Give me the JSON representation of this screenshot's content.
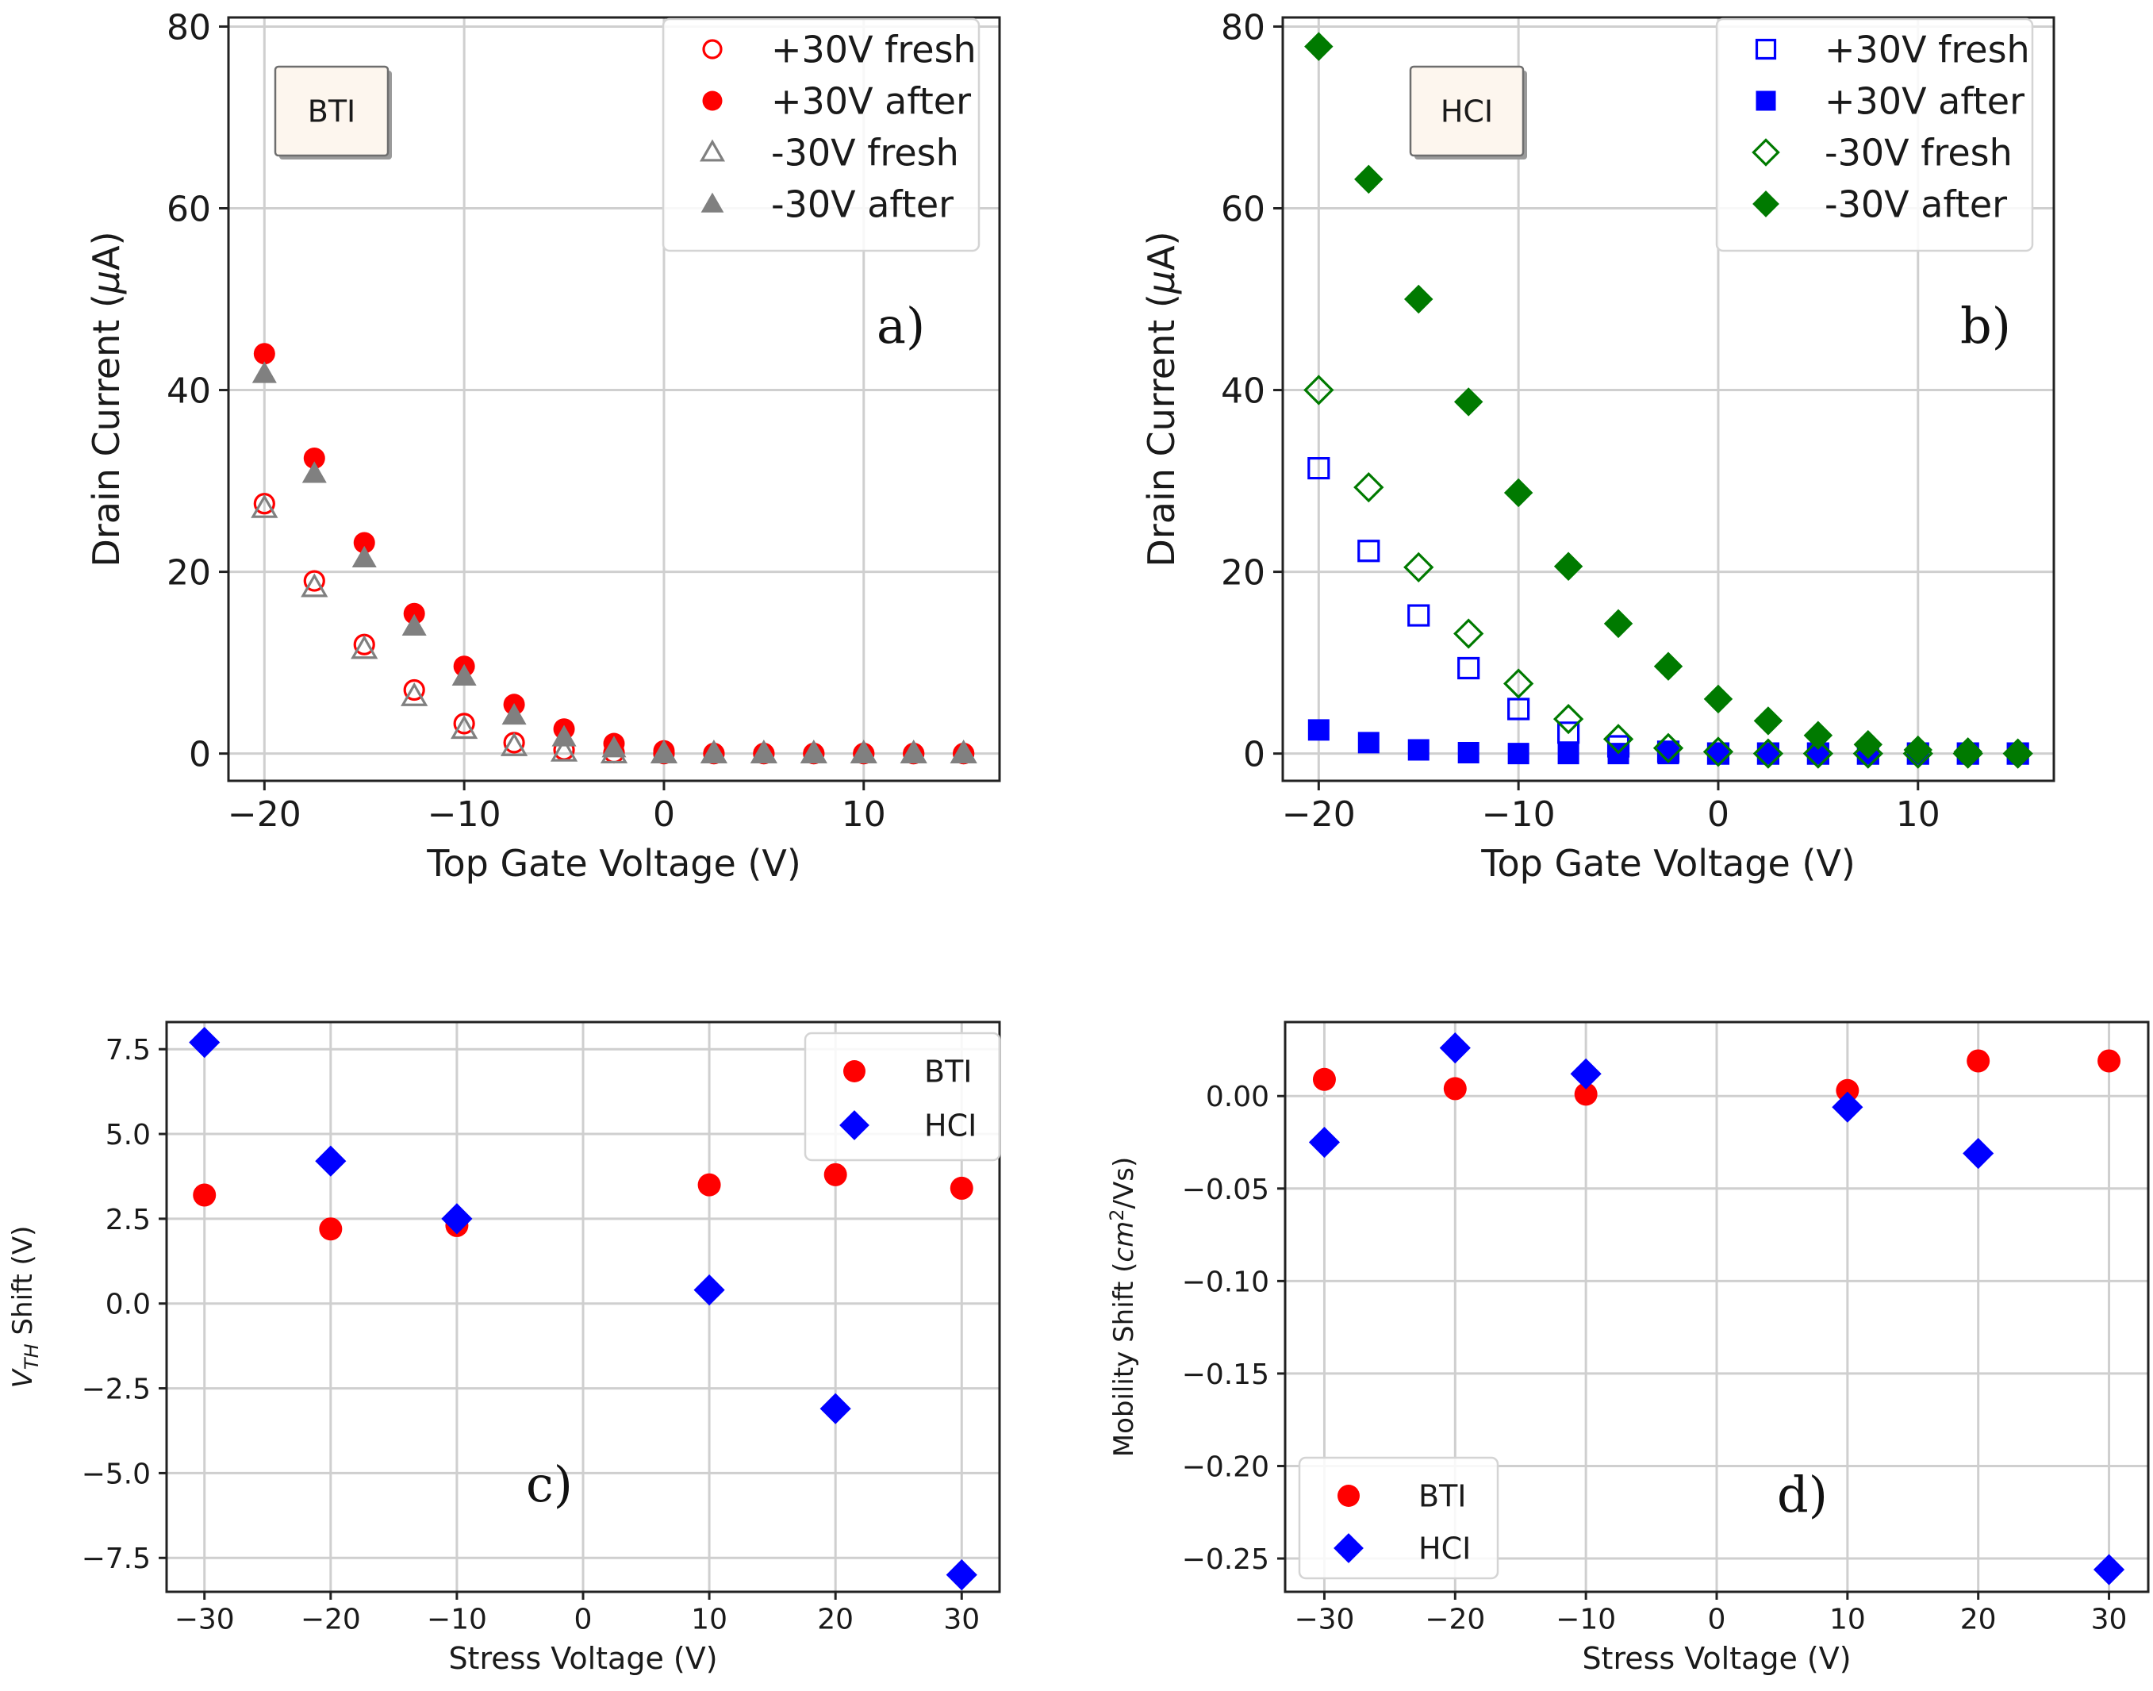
{
  "colors": {
    "red": "#ff0000",
    "gray": "#808080",
    "blue": "#0000ff",
    "green": "#007a00",
    "grid": "#cfcfcf",
    "box_fill": "#fdf6ee"
  },
  "chart_data": [
    {
      "id": "a",
      "type": "scatter",
      "panel_label": "a)",
      "annotation_box": "BTI",
      "xlabel": "Top Gate Voltage (V)",
      "ylabel": "Drain Current (",
      "ylabel_symbol": "μ",
      "ylabel_suffix": "A)",
      "xlim": [
        -21.8,
        16.8
      ],
      "ylim": [
        -3,
        81
      ],
      "xticks": [
        -20,
        -10,
        0,
        10
      ],
      "xtick_labels": [
        "−20",
        "−10",
        "0",
        "10"
      ],
      "yticks": [
        0,
        20,
        40,
        60,
        80
      ],
      "ytick_labels": [
        "0",
        "20",
        "40",
        "60",
        "80"
      ],
      "grid": true,
      "legend_position": "top-right",
      "x": [
        -20,
        -17.5,
        -15,
        -12.5,
        -10,
        -7.5,
        -5,
        -2.5,
        0,
        2.5,
        5,
        7.5,
        10,
        12.5,
        15
      ],
      "series": [
        {
          "name": "+30V fresh",
          "marker": "circle",
          "filled": false,
          "color": "#ff0000",
          "values": [
            27.5,
            19,
            12,
            7,
            3.3,
            1.2,
            0.4,
            0.1,
            0,
            0,
            0,
            0,
            0,
            0,
            0
          ]
        },
        {
          "name": "+30V after",
          "marker": "circle",
          "filled": true,
          "color": "#ff0000",
          "values": [
            44,
            32.5,
            23.2,
            15.4,
            9.6,
            5.4,
            2.7,
            1.1,
            0.3,
            0,
            0,
            0,
            0,
            0,
            0
          ]
        },
        {
          "name": "-30V fresh",
          "marker": "triangle",
          "filled": false,
          "color": "#808080",
          "values": [
            27,
            18.3,
            11.5,
            6.3,
            2.7,
            0.8,
            0.2,
            0,
            0,
            0,
            0,
            0,
            0,
            0,
            0
          ]
        },
        {
          "name": "-30V after",
          "marker": "triangle",
          "filled": true,
          "color": "#808080",
          "values": [
            41.8,
            30.8,
            21.5,
            14,
            8.5,
            4.2,
            1.8,
            0.6,
            0,
            0,
            0,
            0,
            0,
            0,
            0
          ]
        }
      ]
    },
    {
      "id": "b",
      "type": "scatter",
      "panel_label": "b)",
      "annotation_box": "HCI",
      "xlabel": "Top Gate Voltage (V)",
      "ylabel": "Drain Current (",
      "ylabel_symbol": "μ",
      "ylabel_suffix": "A)",
      "xlim": [
        -21.8,
        16.8
      ],
      "ylim": [
        -3,
        81
      ],
      "xticks": [
        -20,
        -10,
        0,
        10
      ],
      "xtick_labels": [
        "−20",
        "−10",
        "0",
        "10"
      ],
      "yticks": [
        0,
        20,
        40,
        60,
        80
      ],
      "ytick_labels": [
        "0",
        "20",
        "40",
        "60",
        "80"
      ],
      "grid": true,
      "legend_position": "top-right",
      "x": [
        -20,
        -17.5,
        -15,
        -12.5,
        -10,
        -7.5,
        -5,
        -2.5,
        0,
        2.5,
        5,
        7.5,
        10,
        12.5,
        15
      ],
      "series": [
        {
          "name": "+30V fresh",
          "marker": "square",
          "filled": false,
          "color": "#0000ff",
          "values": [
            31.4,
            22.3,
            15.2,
            9.4,
            4.9,
            2.3,
            0.8,
            0.2,
            0,
            0,
            0,
            0,
            0,
            0,
            0
          ]
        },
        {
          "name": "+30V after",
          "marker": "square",
          "filled": true,
          "color": "#0000ff",
          "values": [
            2.6,
            1.2,
            0.4,
            0.1,
            0,
            0,
            0,
            0,
            0,
            0,
            0,
            0,
            0,
            0,
            0
          ]
        },
        {
          "name": "-30V fresh",
          "marker": "diamond",
          "filled": false,
          "color": "#007a00",
          "values": [
            40,
            29.3,
            20.5,
            13.2,
            7.7,
            3.8,
            1.6,
            0.6,
            0.2,
            0,
            0,
            0,
            0,
            0,
            0
          ]
        },
        {
          "name": "-30V after",
          "marker": "diamond",
          "filled": true,
          "color": "#007a00",
          "values": [
            77.8,
            63.2,
            50,
            38.7,
            28.7,
            20.6,
            14.3,
            9.6,
            6,
            3.6,
            2,
            1,
            0.4,
            0.2,
            0
          ]
        }
      ]
    },
    {
      "id": "c",
      "type": "scatter",
      "panel_label": "c)",
      "xlabel": "Stress Voltage (V)",
      "ylabel_main": "V",
      "ylabel_sub": "TH",
      "ylabel_rest": " Shift (V)",
      "xlim": [
        -33,
        33
      ],
      "ylim": [
        -8.5,
        8.3
      ],
      "xticks": [
        -30,
        -20,
        -10,
        0,
        10,
        20,
        30
      ],
      "xtick_labels": [
        "−30",
        "−20",
        "−10",
        "0",
        "10",
        "20",
        "30"
      ],
      "yticks": [
        7.5,
        5.0,
        2.5,
        0.0,
        -2.5,
        -5.0,
        -7.5
      ],
      "ytick_labels": [
        "7.5",
        "5.0",
        "2.5",
        "0.0",
        "−2.5",
        "−5.0",
        "−7.5"
      ],
      "grid": true,
      "legend_position": "top-right",
      "x": [
        -30,
        -20,
        -10,
        10,
        20,
        30
      ],
      "series": [
        {
          "name": "BTI",
          "marker": "circle",
          "filled": true,
          "color": "#ff0000",
          "values": [
            3.2,
            2.2,
            2.3,
            3.5,
            3.8,
            3.4
          ]
        },
        {
          "name": "HCI",
          "marker": "diamond",
          "filled": true,
          "color": "#0000ff",
          "values": [
            7.7,
            4.2,
            2.5,
            0.4,
            -3.1,
            -8.0
          ]
        }
      ]
    },
    {
      "id": "d",
      "type": "scatter",
      "panel_label": "d)",
      "xlabel": "Stress Voltage (V)",
      "ylabel": "Mobility Shift (",
      "ylabel_italic": "cm",
      "ylabel_sup": "2",
      "ylabel_suffix": "/Vs)",
      "xlim": [
        -33,
        33
      ],
      "ylim": [
        -0.268,
        0.04
      ],
      "xticks": [
        -30,
        -20,
        -10,
        0,
        10,
        20,
        30
      ],
      "xtick_labels": [
        "−30",
        "−20",
        "−10",
        "0",
        "10",
        "20",
        "30"
      ],
      "yticks": [
        0.0,
        -0.05,
        -0.1,
        -0.15,
        -0.2,
        -0.25
      ],
      "ytick_labels": [
        "0.00",
        "−0.05",
        "−0.10",
        "−0.15",
        "−0.20",
        "−0.25"
      ],
      "grid": true,
      "legend_position": "bottom-left",
      "x": [
        -30,
        -20,
        -10,
        10,
        20,
        30
      ],
      "series": [
        {
          "name": "BTI",
          "marker": "circle",
          "filled": true,
          "color": "#ff0000",
          "values": [
            0.009,
            0.004,
            0.001,
            0.003,
            0.019,
            0.019
          ]
        },
        {
          "name": "HCI",
          "marker": "diamond",
          "filled": true,
          "color": "#0000ff",
          "values": [
            -0.025,
            0.026,
            0.012,
            -0.006,
            -0.031,
            -0.256
          ]
        }
      ]
    }
  ]
}
